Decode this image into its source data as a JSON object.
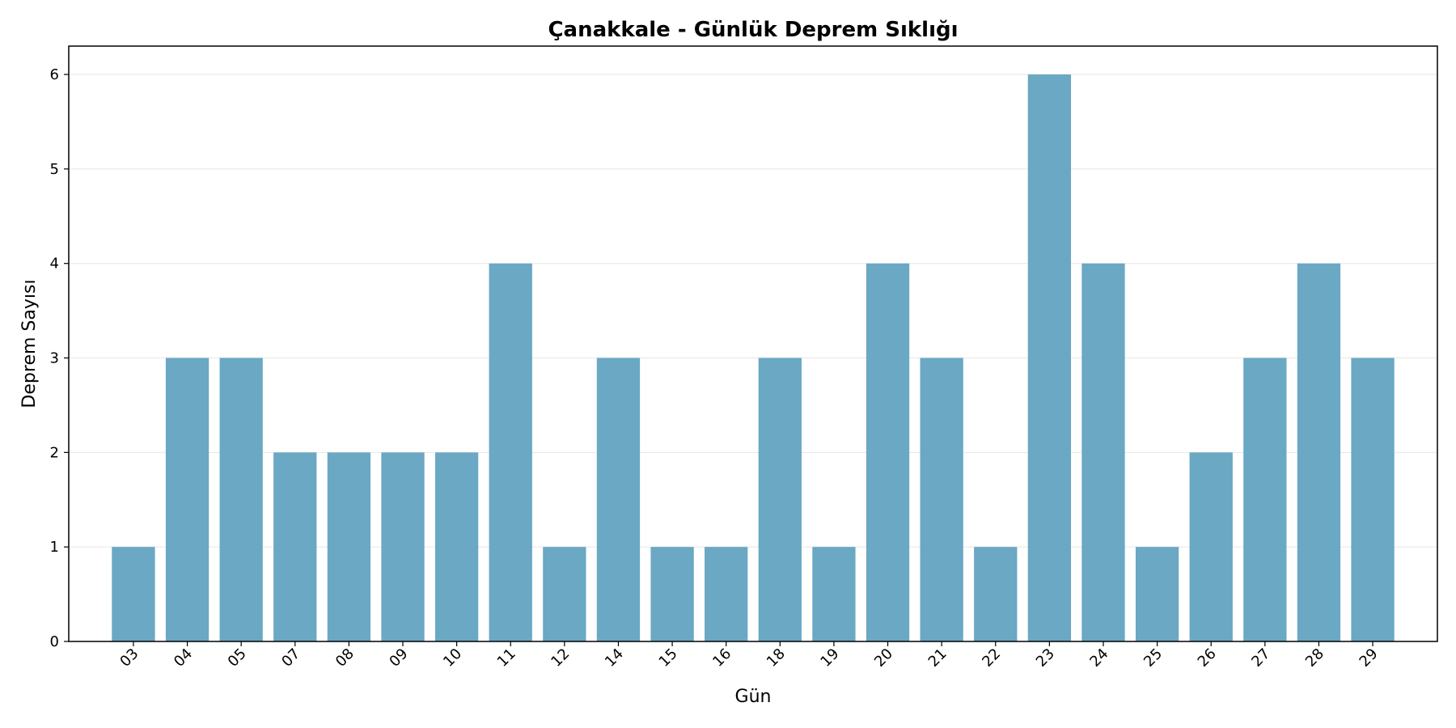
{
  "chart_data": {
    "type": "bar",
    "title": "Çanakkale - Günlük Deprem Sıklığı",
    "xlabel": "Gün",
    "ylabel": "Deprem Sayısı",
    "categories": [
      "03",
      "04",
      "05",
      "07",
      "08",
      "09",
      "10",
      "11",
      "12",
      "14",
      "15",
      "16",
      "18",
      "19",
      "20",
      "21",
      "22",
      "23",
      "24",
      "25",
      "26",
      "27",
      "28",
      "29"
    ],
    "values": [
      1,
      3,
      3,
      2,
      2,
      2,
      2,
      4,
      1,
      3,
      1,
      1,
      3,
      1,
      4,
      3,
      1,
      6,
      4,
      1,
      2,
      3,
      4,
      3
    ],
    "ylim": [
      0,
      6.3
    ],
    "yticks": [
      0,
      1,
      2,
      3,
      4,
      5,
      6
    ],
    "grid": "y",
    "bar_color": "#6aa8c4"
  }
}
